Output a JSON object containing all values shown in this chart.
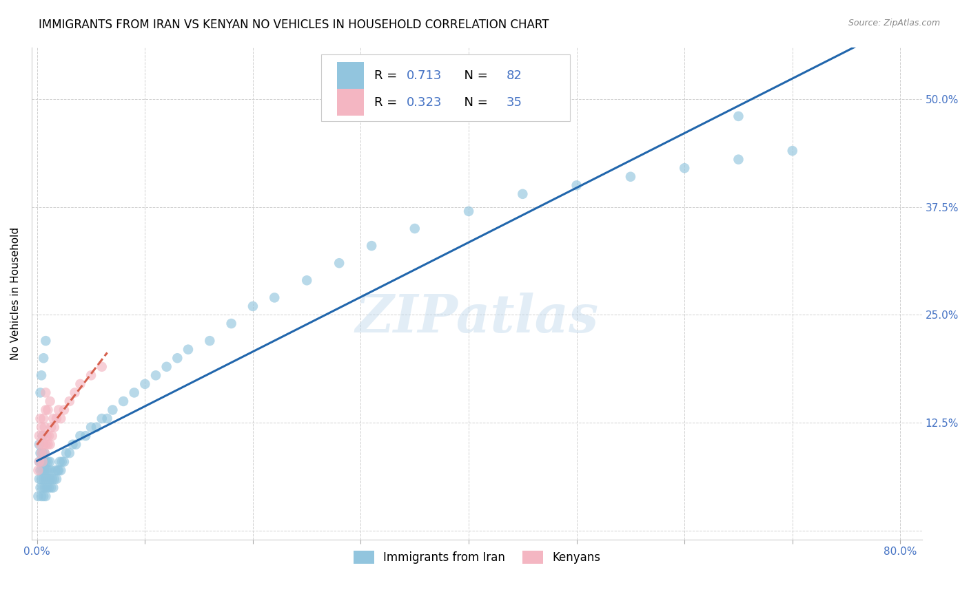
{
  "title": "IMMIGRANTS FROM IRAN VS KENYAN NO VEHICLES IN HOUSEHOLD CORRELATION CHART",
  "source": "Source: ZipAtlas.com",
  "ylabel": "No Vehicles in Household",
  "xlabel": "",
  "xlim_min": -0.005,
  "xlim_max": 0.82,
  "ylim_min": -0.01,
  "ylim_max": 0.56,
  "xtick_positions": [
    0.0,
    0.1,
    0.2,
    0.3,
    0.4,
    0.5,
    0.6,
    0.7,
    0.8
  ],
  "xticklabels": [
    "0.0%",
    "",
    "",
    "",
    "",
    "",
    "",
    "",
    "80.0%"
  ],
  "ytick_positions": [
    0.0,
    0.125,
    0.25,
    0.375,
    0.5
  ],
  "yticklabels": [
    "",
    "12.5%",
    "25.0%",
    "37.5%",
    "50.0%"
  ],
  "blue_color": "#92c5de",
  "pink_color": "#f4b6c2",
  "blue_line_color": "#2166ac",
  "pink_line_color": "#d6604d",
  "R_blue": 0.713,
  "N_blue": 82,
  "R_pink": 0.323,
  "N_pink": 35,
  "legend_label_blue": "Immigrants from Iran",
  "legend_label_pink": "Kenyans",
  "watermark": "ZIPatlas",
  "grid_color": "#d0d0d0",
  "title_fontsize": 12,
  "axis_label_fontsize": 11,
  "tick_fontsize": 11,
  "tick_color": "#4472c4",
  "blue_x": [
    0.001,
    0.002,
    0.002,
    0.003,
    0.003,
    0.003,
    0.004,
    0.004,
    0.004,
    0.005,
    0.005,
    0.005,
    0.005,
    0.006,
    0.006,
    0.006,
    0.007,
    0.007,
    0.007,
    0.008,
    0.008,
    0.008,
    0.009,
    0.009,
    0.01,
    0.01,
    0.011,
    0.011,
    0.012,
    0.012,
    0.013,
    0.013,
    0.014,
    0.015,
    0.016,
    0.017,
    0.018,
    0.019,
    0.02,
    0.021,
    0.022,
    0.023,
    0.025,
    0.027,
    0.03,
    0.033,
    0.036,
    0.04,
    0.045,
    0.05,
    0.055,
    0.06,
    0.065,
    0.07,
    0.08,
    0.09,
    0.1,
    0.11,
    0.12,
    0.13,
    0.14,
    0.16,
    0.18,
    0.2,
    0.22,
    0.25,
    0.28,
    0.31,
    0.35,
    0.4,
    0.45,
    0.5,
    0.55,
    0.6,
    0.65,
    0.7,
    0.002,
    0.003,
    0.004,
    0.006,
    0.008,
    0.65
  ],
  "blue_y": [
    0.04,
    0.06,
    0.08,
    0.05,
    0.07,
    0.09,
    0.04,
    0.06,
    0.08,
    0.05,
    0.07,
    0.09,
    0.11,
    0.04,
    0.06,
    0.08,
    0.05,
    0.07,
    0.09,
    0.04,
    0.06,
    0.08,
    0.05,
    0.07,
    0.06,
    0.08,
    0.05,
    0.07,
    0.06,
    0.08,
    0.05,
    0.07,
    0.06,
    0.05,
    0.06,
    0.07,
    0.06,
    0.07,
    0.07,
    0.08,
    0.07,
    0.08,
    0.08,
    0.09,
    0.09,
    0.1,
    0.1,
    0.11,
    0.11,
    0.12,
    0.12,
    0.13,
    0.13,
    0.14,
    0.15,
    0.16,
    0.17,
    0.18,
    0.19,
    0.2,
    0.21,
    0.22,
    0.24,
    0.26,
    0.27,
    0.29,
    0.31,
    0.33,
    0.35,
    0.37,
    0.39,
    0.4,
    0.41,
    0.42,
    0.43,
    0.44,
    0.1,
    0.16,
    0.18,
    0.2,
    0.22,
    0.48
  ],
  "pink_x": [
    0.001,
    0.002,
    0.002,
    0.003,
    0.003,
    0.004,
    0.004,
    0.005,
    0.005,
    0.006,
    0.006,
    0.007,
    0.007,
    0.008,
    0.008,
    0.009,
    0.01,
    0.011,
    0.012,
    0.013,
    0.014,
    0.015,
    0.016,
    0.018,
    0.02,
    0.022,
    0.025,
    0.03,
    0.035,
    0.04,
    0.05,
    0.06,
    0.008,
    0.01,
    0.012
  ],
  "pink_y": [
    0.07,
    0.08,
    0.11,
    0.1,
    0.13,
    0.09,
    0.12,
    0.08,
    0.11,
    0.1,
    0.13,
    0.09,
    0.12,
    0.1,
    0.14,
    0.11,
    0.1,
    0.11,
    0.1,
    0.12,
    0.11,
    0.13,
    0.12,
    0.13,
    0.14,
    0.13,
    0.14,
    0.15,
    0.16,
    0.17,
    0.18,
    0.19,
    0.16,
    0.14,
    0.15
  ]
}
